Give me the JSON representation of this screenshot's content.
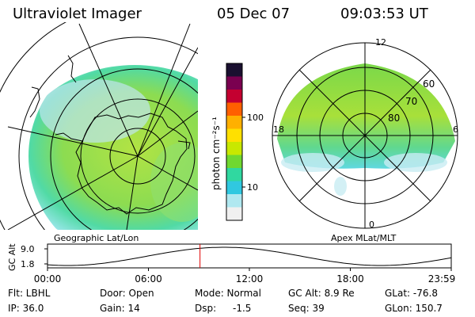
{
  "header": {
    "title": "Ultraviolet Imager",
    "date": "05 Dec 07",
    "time": "09:03:53 UT"
  },
  "left_map": {
    "label": "Geographic Lat/Lon"
  },
  "right_map": {
    "label": "Apex MLat/MLT",
    "mlt_labels": [
      "12",
      "18",
      "6",
      "0"
    ],
    "lat_labels": [
      "60",
      "70",
      "80"
    ]
  },
  "colorbar": {
    "unit_label": "photon cm⁻²s⁻¹",
    "ticks": [
      "100",
      "10"
    ],
    "colors": [
      "#1a1030",
      "#7a0050",
      "#c40030",
      "#ff6000",
      "#ffb000",
      "#ffe000",
      "#c8e800",
      "#70d830",
      "#30d8a0",
      "#30c8e0",
      "#b0e8f0",
      "#f0f0f0"
    ]
  },
  "altitude_plot": {
    "ylabel": "GC Alt",
    "yticks": [
      "9.0",
      "1.8"
    ],
    "xticks": [
      "00:00",
      "06:00",
      "12:00",
      "18:00",
      "23:59"
    ],
    "cursor_hours": 9.065
  },
  "footer": {
    "flt": "Flt: LBHL",
    "ip": "IP: 36.0",
    "door": "Door: Open",
    "gain": "Gain: 14",
    "mode": "Mode: Normal",
    "dsp_label": "Dsp:",
    "dsp_value": "-1.5",
    "gc_alt": "GC Alt: 8.9 Re",
    "seq": "Seq: 39",
    "glat": "GLat: -76.8",
    "glon": "GLon: 150.7"
  }
}
